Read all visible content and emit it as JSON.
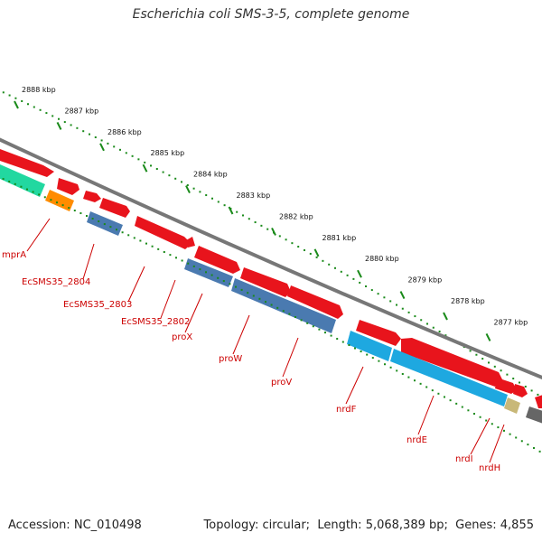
{
  "title": "Escherichia coli SMS-3-5, complete genome",
  "footer": {
    "accession_label": "Accession:",
    "accession": "NC_010498",
    "topology_label": "Topology:",
    "topology": "circular",
    "length_label": "Length:",
    "length": "5,068,389 bp",
    "genes_label": "Genes:",
    "genes": "4,855"
  },
  "colors": {
    "cds": "#e8141c",
    "trna": "#4a7ab0",
    "rrna": "#1ea8e0",
    "orange_feature": "#ff8c00",
    "teal_feature": "#22d8a0",
    "khaki_feature": "#c8b878",
    "dark_feature": "#666666",
    "backbone": "#777777",
    "ticks": "#1a8a1a",
    "label": "#cc0000"
  },
  "scale": {
    "unit": "kbp",
    "ticks": [
      "2888 kbp",
      "2887 kbp",
      "2886 kbp",
      "2885 kbp",
      "2884 kbp",
      "2883 kbp",
      "2882 kbp",
      "2881 kbp",
      "2880 kbp",
      "2879 kbp",
      "2878 kbp",
      "2877 kbp"
    ]
  },
  "features": [
    {
      "label": "mprA",
      "type": "cds"
    },
    {
      "label": "EcSMS35_2804",
      "type": "cds"
    },
    {
      "label": "EcSMS35_2803",
      "type": "cds"
    },
    {
      "label": "EcSMS35_2802",
      "type": "cds"
    },
    {
      "label": "proX",
      "type": "trna"
    },
    {
      "label": "proW",
      "type": "trna"
    },
    {
      "label": "proV",
      "type": "trna"
    },
    {
      "label": "nrdF",
      "type": "rrna"
    },
    {
      "label": "nrdE",
      "type": "rrna"
    },
    {
      "label": "nrdI",
      "type": "cds"
    },
    {
      "label": "nrdH",
      "type": "cds"
    }
  ]
}
